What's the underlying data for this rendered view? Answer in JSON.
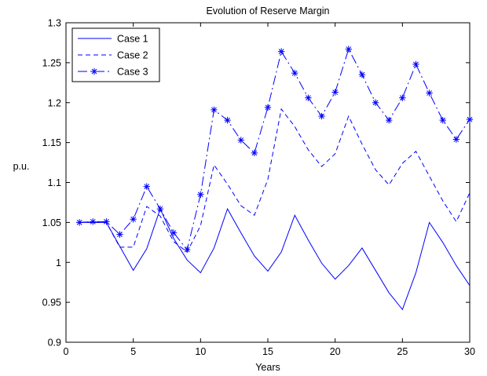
{
  "chart_data": {
    "type": "line",
    "title": "Evolution of Reserve Margin",
    "xlabel": "Years",
    "ylabel": "p.u.",
    "xlim": [
      0,
      30
    ],
    "ylim": [
      0.9,
      1.3
    ],
    "xticks": [
      0,
      5,
      10,
      15,
      20,
      25,
      30
    ],
    "yticks": [
      0.9,
      0.95,
      1,
      1.05,
      1.1,
      1.15,
      1.2,
      1.25,
      1.3
    ],
    "xtick_labels": [
      "0",
      "5",
      "10",
      "15",
      "20",
      "25",
      "30"
    ],
    "ytick_labels": [
      "0.9",
      "0.95",
      "1",
      "1.05",
      "1.1",
      "1.15",
      "1.2",
      "1.25",
      "1.3"
    ],
    "grid": false,
    "legend": {
      "position": "top-left"
    },
    "line_color": "#0000ff",
    "x": [
      1,
      2,
      3,
      4,
      5,
      6,
      7,
      8,
      9,
      10,
      11,
      12,
      13,
      14,
      15,
      16,
      17,
      18,
      19,
      20,
      21,
      22,
      23,
      24,
      25,
      26,
      27,
      28,
      29,
      30
    ],
    "series": [
      {
        "name": "Case 1",
        "style": "solid",
        "marker": "none",
        "values": [
          1.05,
          1.05,
          1.05,
          1.02,
          0.99,
          1.017,
          1.067,
          1.03,
          1.003,
          0.987,
          1.018,
          1.067,
          1.037,
          1.008,
          0.989,
          1.013,
          1.059,
          1.028,
          0.999,
          0.979,
          0.996,
          1.018,
          0.99,
          0.962,
          0.941,
          0.987,
          1.05,
          1.025,
          0.996,
          0.971
        ]
      },
      {
        "name": "Case 2",
        "style": "dashed",
        "marker": "none",
        "values": [
          1.05,
          1.05,
          1.05,
          1.019,
          1.019,
          1.07,
          1.058,
          1.026,
          1.013,
          1.046,
          1.122,
          1.098,
          1.071,
          1.059,
          1.104,
          1.192,
          1.17,
          1.141,
          1.12,
          1.136,
          1.183,
          1.148,
          1.116,
          1.097,
          1.124,
          1.139,
          1.108,
          1.077,
          1.051,
          1.087
        ]
      },
      {
        "name": "Case 3",
        "style": "dash-dot",
        "marker": "star",
        "values": [
          1.05,
          1.051,
          1.051,
          1.035,
          1.054,
          1.095,
          1.067,
          1.037,
          1.016,
          1.085,
          1.191,
          1.178,
          1.153,
          1.137,
          1.194,
          1.264,
          1.237,
          1.206,
          1.183,
          1.213,
          1.267,
          1.235,
          1.2,
          1.178,
          1.206,
          1.248,
          1.212,
          1.178,
          1.154,
          1.179
        ]
      }
    ]
  }
}
